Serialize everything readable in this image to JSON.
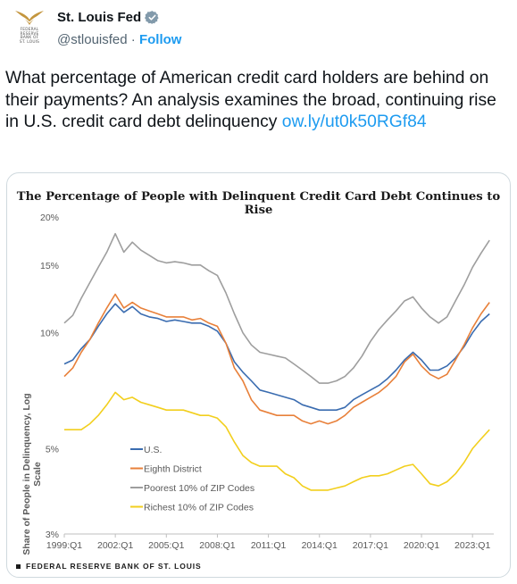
{
  "account": {
    "name": "St. Louis Fed",
    "handle": "@stlouisfed",
    "separator": " · ",
    "follow_label": "Follow",
    "avatar_text": "FEDERAL\nRESERVE\nBANK of\nST. LOUIS",
    "brand_color": "#c4963e"
  },
  "tweet": {
    "text": "What percentage of American credit card holders are behind on their payments? An analysis examines the broad, continuing rise in U.S. credit card debt delinquency",
    "link": "ow.ly/ut0k50RGf84"
  },
  "media": {
    "footer": "FEDERAL RESERVE BANK OF ST. LOUIS"
  },
  "chart_data": {
    "type": "line",
    "title": "The Percentage of People with Delinquent Credit Card Debt Continues to Rise",
    "ylabel": "Share of People in Delinquency, Log Scale",
    "xlabel": "",
    "y_scale": "log",
    "ylim": [
      3,
      20
    ],
    "yticks": [
      3,
      5,
      10,
      15,
      20
    ],
    "ytick_labels": [
      "3%",
      "5%",
      "10%",
      "15%",
      "20%"
    ],
    "xlim": [
      1999.0,
      2024.25
    ],
    "xticks": [
      1999,
      2002,
      2005,
      2008,
      2011,
      2014,
      2017,
      2020,
      2023
    ],
    "xtick_labels": [
      "1999:Q1",
      "2002:Q1",
      "2005:Q1",
      "2008:Q1",
      "2011:Q1",
      "2014:Q1",
      "2017:Q1",
      "2020:Q1",
      "2023:Q1"
    ],
    "grid": false,
    "legend_position": "lower-left",
    "x": [
      1999,
      1999.5,
      2000,
      2000.5,
      2001,
      2001.5,
      2002,
      2002.5,
      2003,
      2003.5,
      2004,
      2004.5,
      2005,
      2005.5,
      2006,
      2006.5,
      2007,
      2007.5,
      2008,
      2008.5,
      2009,
      2009.5,
      2010,
      2010.5,
      2011,
      2011.5,
      2012,
      2012.5,
      2013,
      2013.5,
      2014,
      2014.5,
      2015,
      2015.5,
      2016,
      2016.5,
      2017,
      2017.5,
      2018,
      2018.5,
      2019,
      2019.5,
      2020,
      2020.5,
      2021,
      2021.5,
      2022,
      2022.5,
      2023,
      2023.5,
      2024
    ],
    "series": [
      {
        "name": "U.S.",
        "color": "#3a6cb0",
        "values": [
          8.3,
          8.5,
          9.1,
          9.6,
          10.4,
          11.2,
          11.9,
          11.3,
          11.7,
          11.2,
          11.0,
          10.9,
          10.7,
          10.8,
          10.7,
          10.6,
          10.6,
          10.4,
          10.1,
          9.4,
          8.4,
          7.9,
          7.5,
          7.1,
          7.0,
          6.9,
          6.8,
          6.7,
          6.5,
          6.4,
          6.3,
          6.3,
          6.3,
          6.4,
          6.7,
          6.9,
          7.1,
          7.3,
          7.6,
          8.0,
          8.5,
          8.9,
          8.5,
          8.0,
          8.0,
          8.2,
          8.6,
          9.2,
          10.0,
          10.7,
          11.2
        ]
      },
      {
        "name": "Eighth District",
        "color": "#e8803a",
        "values": [
          7.7,
          8.1,
          8.9,
          9.6,
          10.6,
          11.6,
          12.6,
          11.6,
          12.0,
          11.6,
          11.4,
          11.2,
          11.0,
          11.0,
          11.0,
          10.8,
          10.9,
          10.6,
          10.4,
          9.4,
          8.1,
          7.5,
          6.7,
          6.3,
          6.2,
          6.1,
          6.1,
          6.1,
          5.9,
          5.8,
          5.9,
          5.8,
          5.9,
          6.1,
          6.4,
          6.6,
          6.8,
          7.0,
          7.3,
          7.7,
          8.4,
          8.8,
          8.2,
          7.8,
          7.6,
          7.8,
          8.5,
          9.3,
          10.3,
          11.2,
          12.0
        ]
      },
      {
        "name": "Poorest 10% of ZIP Codes",
        "color": "#9e9e9e",
        "values": [
          10.6,
          11.1,
          12.3,
          13.5,
          14.8,
          16.2,
          18.1,
          16.2,
          17.2,
          16.4,
          15.9,
          15.4,
          15.2,
          15.3,
          15.2,
          15.0,
          15.0,
          14.5,
          14.1,
          12.7,
          11.2,
          10.0,
          9.3,
          8.9,
          8.8,
          8.7,
          8.6,
          8.3,
          8.0,
          7.7,
          7.4,
          7.4,
          7.5,
          7.7,
          8.1,
          8.7,
          9.5,
          10.2,
          10.8,
          11.4,
          12.1,
          12.4,
          11.6,
          11.0,
          10.6,
          11.0,
          12.1,
          13.3,
          14.8,
          16.1,
          17.4
        ]
      },
      {
        "name": "Richest 10% of ZIP Codes",
        "color": "#f2cf1d",
        "values": [
          5.6,
          5.6,
          5.6,
          5.8,
          6.1,
          6.5,
          7.0,
          6.7,
          6.8,
          6.6,
          6.5,
          6.4,
          6.3,
          6.3,
          6.3,
          6.2,
          6.1,
          6.1,
          6.0,
          5.7,
          5.2,
          4.8,
          4.6,
          4.5,
          4.5,
          4.5,
          4.3,
          4.2,
          4.0,
          3.9,
          3.9,
          3.9,
          3.95,
          4.0,
          4.1,
          4.2,
          4.25,
          4.25,
          4.3,
          4.4,
          4.5,
          4.55,
          4.3,
          4.05,
          4.0,
          4.1,
          4.3,
          4.6,
          5.0,
          5.3,
          5.6
        ]
      }
    ]
  }
}
